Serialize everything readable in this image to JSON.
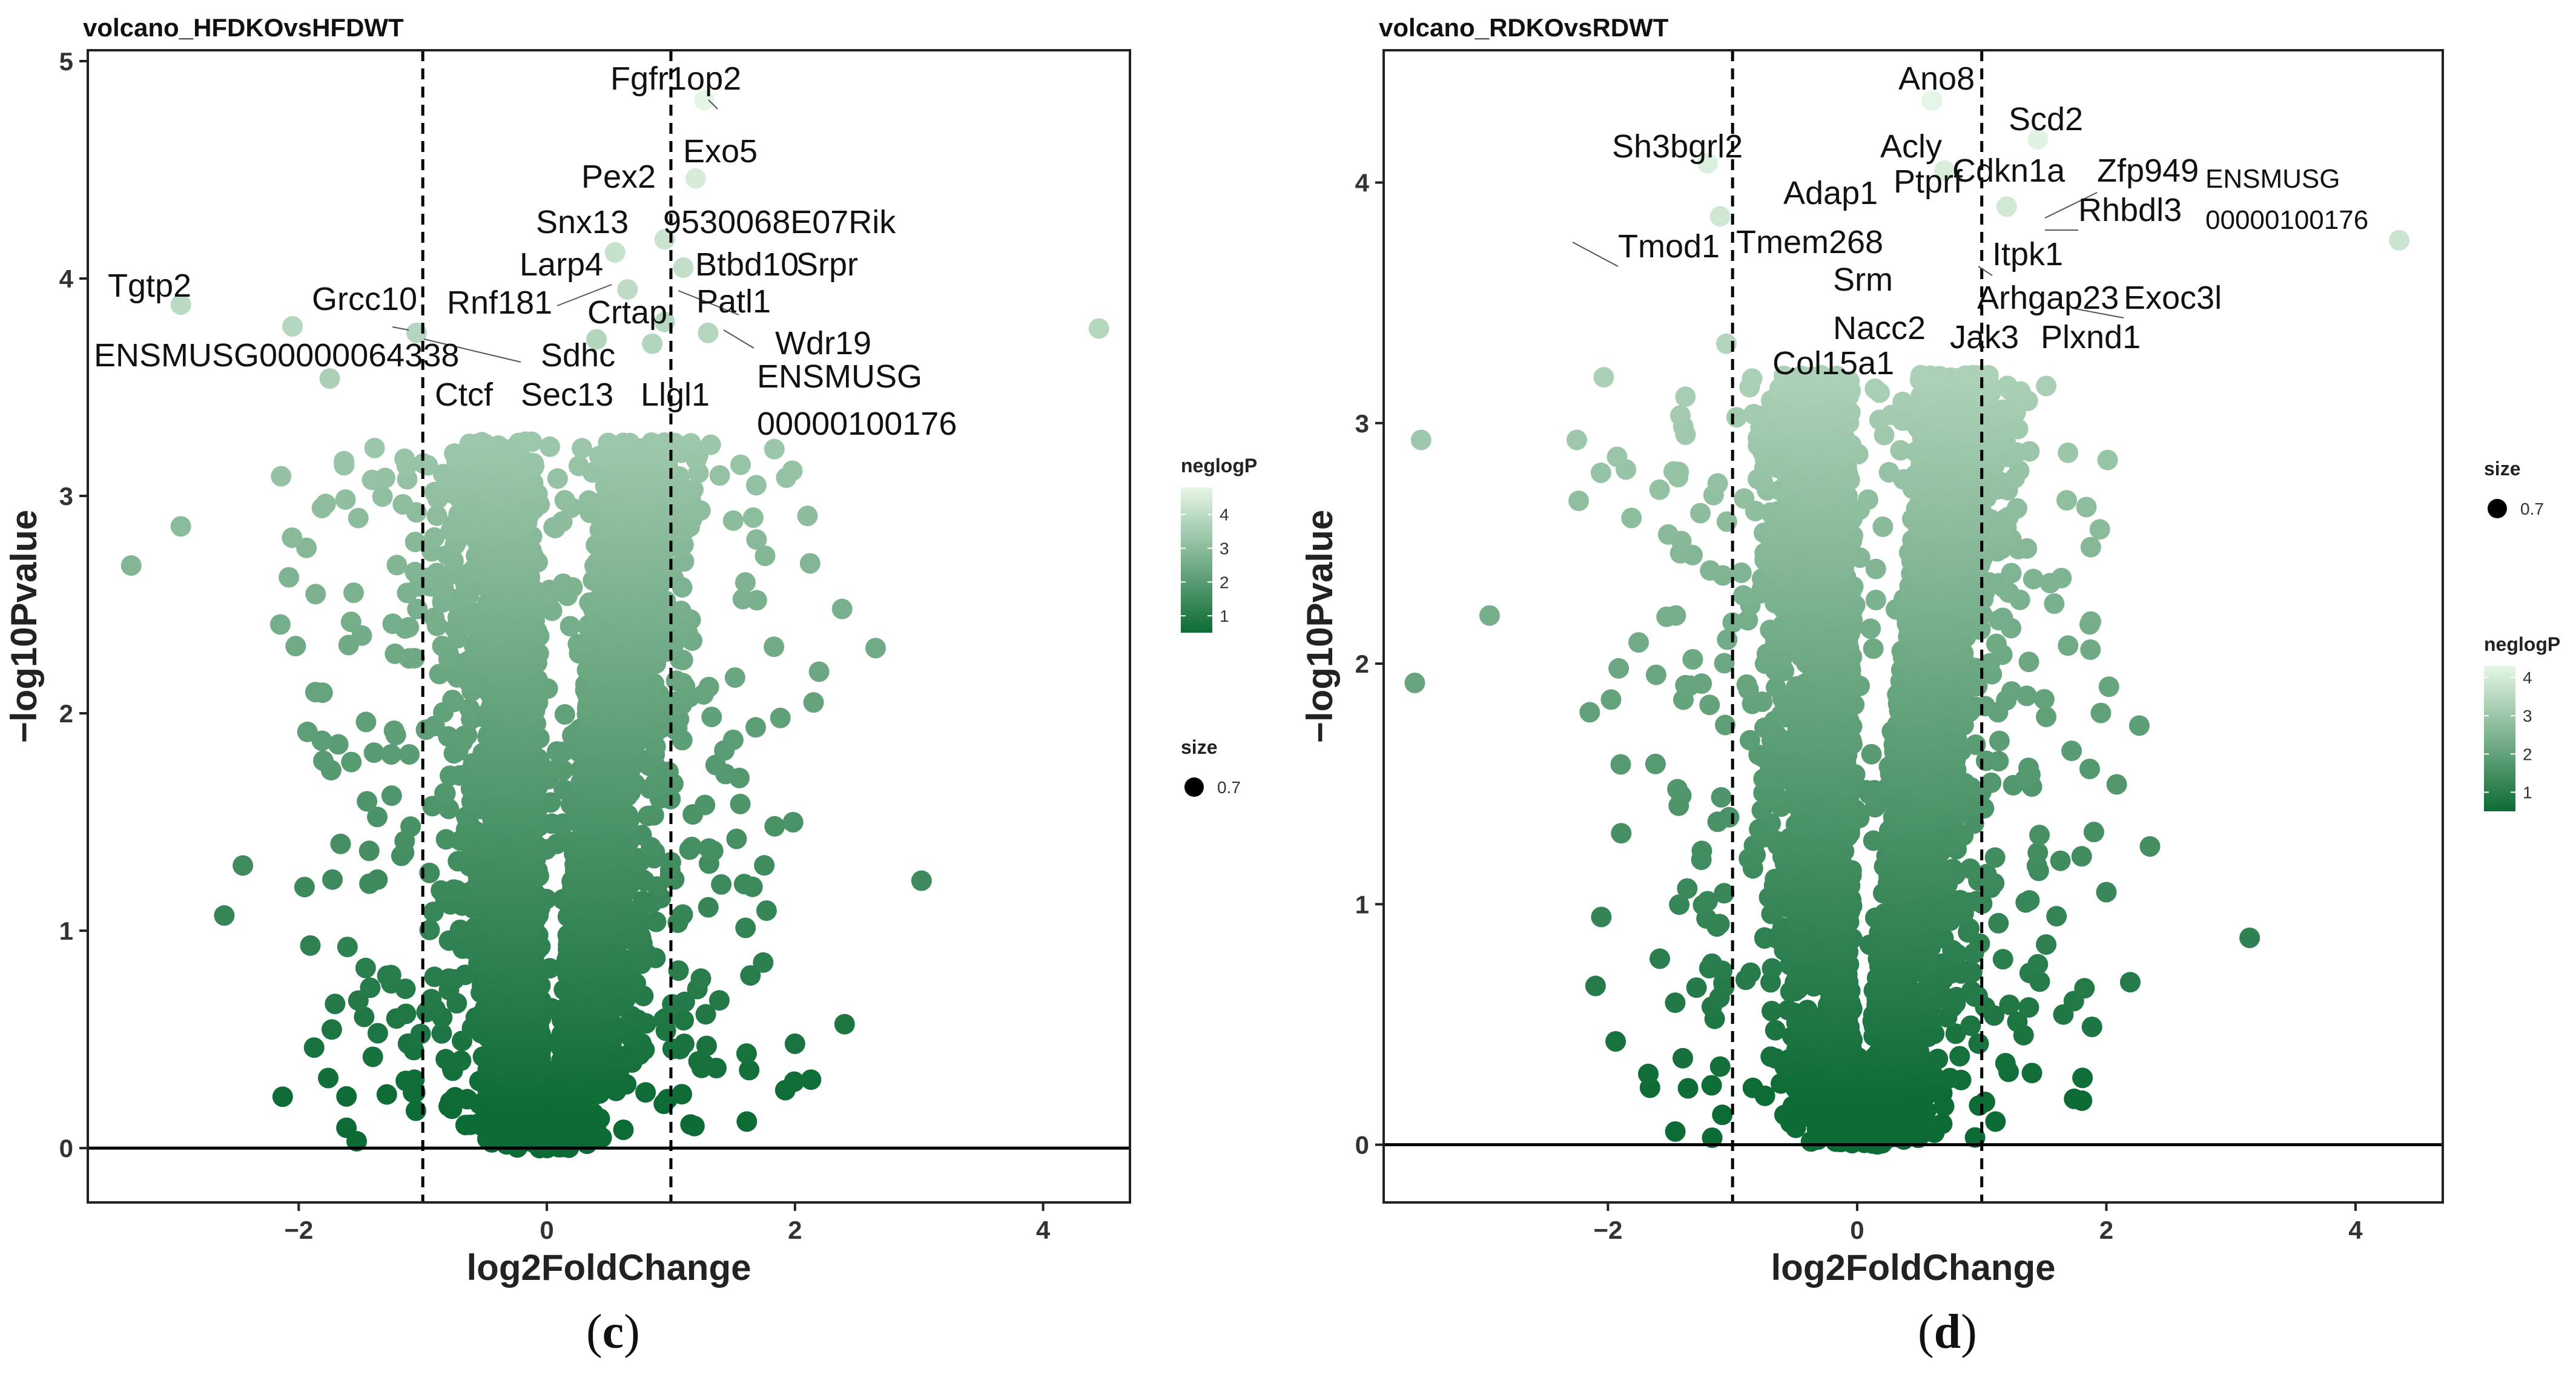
{
  "figure": {
    "caption_c": "c",
    "caption_d": "d"
  },
  "chart_data": [
    {
      "type": "scatter",
      "panel": "c",
      "title": "volcano_HFDKOvsHFDWT",
      "xlabel": "log2FoldChange",
      "ylabel": "−log10Pvalue",
      "xlim": [
        -3.7,
        4.7
      ],
      "ylim": [
        -0.25,
        5.05
      ],
      "xticks": [
        -2,
        0,
        2,
        4
      ],
      "xtick_labels": [
        "−2",
        "0",
        "2",
        "4"
      ],
      "yticks": [
        0,
        1,
        2,
        3,
        4,
        5
      ],
      "ytick_labels": [
        "0",
        "1",
        "2",
        "3",
        "4",
        "5"
      ],
      "vlines": [
        -1,
        1
      ],
      "hline": 0,
      "grid": false,
      "colorbar": {
        "title": "neglogP",
        "ticks": [
          1,
          2,
          3,
          4
        ],
        "tick_labels": [
          "1",
          "2",
          "3",
          "4"
        ],
        "min": 0.5,
        "max": 4.8,
        "low_color": "#0d6b35",
        "high_color": "#e6f6e6"
      },
      "size_legend": {
        "title": "size",
        "value_label": "0.7"
      },
      "highlighted_points": [
        [
          4.45,
          3.77
        ],
        [
          -2.95,
          3.88
        ],
        [
          3.02,
          1.23
        ],
        [
          -3.35,
          2.68
        ],
        [
          -2.95,
          2.86
        ],
        [
          -1.75,
          3.54
        ],
        [
          -2.05,
          3.78
        ],
        [
          1.27,
          4.82
        ],
        [
          1.2,
          4.46
        ],
        [
          0.55,
          4.12
        ],
        [
          0.95,
          4.18
        ],
        [
          1.1,
          4.05
        ],
        [
          0.95,
          3.8
        ],
        [
          1.3,
          3.75
        ],
        [
          -1.05,
          3.75
        ],
        [
          0.65,
          3.95
        ],
        [
          0.4,
          3.72
        ],
        [
          0.85,
          3.7
        ],
        [
          2.38,
          2.48
        ],
        [
          2.65,
          2.3
        ],
        [
          2.15,
          2.05
        ],
        [
          -2.45,
          1.3
        ],
        [
          -2.6,
          1.07
        ],
        [
          2.4,
          0.57
        ],
        [
          2.0,
          0.48
        ]
      ],
      "labels": [
        {
          "text": "Fgfr1op2",
          "x": 1.27,
          "y": 4.82
        },
        {
          "text": "Exo5",
          "x": 1.2,
          "y": 4.46
        },
        {
          "text": "Pex2",
          "x": 0.55,
          "y": 4.12
        },
        {
          "text": "Snx13",
          "x": 0.6,
          "y": 4.06
        },
        {
          "text": "9530068E07Rik",
          "x": 0.95,
          "y": 4.18
        },
        {
          "text": "Larp4",
          "x": 0.6,
          "y": 4.0
        },
        {
          "text": "Btbd10",
          "x": 1.0,
          "y": 4.05
        },
        {
          "text": "Srpr",
          "x": 1.1,
          "y": 4.05
        },
        {
          "text": "Tgtp2",
          "x": -2.95,
          "y": 3.88
        },
        {
          "text": "Grcc10",
          "x": -2.05,
          "y": 3.78
        },
        {
          "text": "Rnf181",
          "x": 0.55,
          "y": 3.97
        },
        {
          "text": "Crtap",
          "x": 0.7,
          "y": 3.93
        },
        {
          "text": "Patl1",
          "x": 1.0,
          "y": 3.85
        },
        {
          "text": "ENSMUSG00000064338",
          "x": -1.05,
          "y": 3.75
        },
        {
          "text": "Sdhc",
          "x": 0.45,
          "y": 3.72
        },
        {
          "text": "Wdr19",
          "x": 1.3,
          "y": 3.75
        },
        {
          "text": "Ctcf",
          "x": -0.6,
          "y": 3.55
        },
        {
          "text": "Sec13",
          "x": 0.3,
          "y": 3.55
        },
        {
          "text": "Llgl1",
          "x": 0.95,
          "y": 3.75
        },
        {
          "text": "ENSMUSG",
          "x": 4.45,
          "y": 3.77
        },
        {
          "text": "00000100176",
          "x": 4.45,
          "y": 3.77
        }
      ]
    },
    {
      "type": "scatter",
      "panel": "d",
      "title": "volcano_RDKOvsRDWT",
      "xlabel": "log2FoldChange",
      "ylabel": "−log10Pvalue",
      "xlim": [
        -3.8,
        4.7
      ],
      "ylim": [
        -0.24,
        4.55
      ],
      "xticks": [
        -2,
        0,
        2,
        4
      ],
      "xtick_labels": [
        "−2",
        "0",
        "2",
        "4"
      ],
      "yticks": [
        0,
        1,
        2,
        3,
        4
      ],
      "ytick_labels": [
        "0",
        "1",
        "2",
        "3",
        "4"
      ],
      "vlines": [
        -1,
        1
      ],
      "hline": 0,
      "grid": false,
      "colorbar": {
        "title": "neglogP",
        "ticks": [
          1,
          2,
          3,
          4
        ],
        "tick_labels": [
          "1",
          "2",
          "3",
          "4"
        ],
        "min": 0.5,
        "max": 4.3,
        "low_color": "#0d6b35",
        "high_color": "#e6f6e6"
      },
      "size_legend": {
        "title": "size",
        "value_label": "0.7"
      },
      "highlighted_points": [
        [
          4.35,
          3.76
        ],
        [
          3.15,
          0.86
        ],
        [
          -3.5,
          2.93
        ],
        [
          -3.55,
          1.92
        ],
        [
          -2.95,
          2.2
        ],
        [
          -2.25,
          2.93
        ],
        [
          -1.2,
          4.08
        ],
        [
          -1.1,
          3.86
        ],
        [
          -1.05,
          3.33
        ],
        [
          0.6,
          4.34
        ],
        [
          1.45,
          4.18
        ],
        [
          0.7,
          4.05
        ],
        [
          1.2,
          3.9
        ],
        [
          2.35,
          1.24
        ],
        [
          1.9,
          1.3
        ],
        [
          2.0,
          1.05
        ],
        [
          1.6,
          0.95
        ],
        [
          1.45,
          0.75
        ]
      ],
      "labels": [
        {
          "text": "Ano8",
          "x": 0.6,
          "y": 4.34
        },
        {
          "text": "Scd2",
          "x": 1.45,
          "y": 4.18
        },
        {
          "text": "Sh3bgrl2",
          "x": -1.2,
          "y": 4.08
        },
        {
          "text": "Acly",
          "x": 0.6,
          "y": 4.05
        },
        {
          "text": "Cdkn1a",
          "x": 0.75,
          "y": 3.98
        },
        {
          "text": "Zfp949",
          "x": 1.0,
          "y": 3.95
        },
        {
          "text": "ENSMUSG",
          "x": 4.35,
          "y": 3.76
        },
        {
          "text": "00000100176",
          "x": 4.35,
          "y": 3.76
        },
        {
          "text": "Adap1",
          "x": 0.55,
          "y": 3.92
        },
        {
          "text": "Ptprf",
          "x": 0.7,
          "y": 3.92
        },
        {
          "text": "Rhbdl3",
          "x": 1.0,
          "y": 3.85
        },
        {
          "text": "Tmod1",
          "x": -1.1,
          "y": 3.86
        },
        {
          "text": "Tmem268",
          "x": 0.5,
          "y": 3.8
        },
        {
          "text": "Itpk1",
          "x": 0.95,
          "y": 3.72
        },
        {
          "text": "Srm",
          "x": 0.45,
          "y": 3.6
        },
        {
          "text": "Arhgap23",
          "x": 0.75,
          "y": 3.58
        },
        {
          "text": "Exoc3l",
          "x": 1.0,
          "y": 3.58
        },
        {
          "text": "Nacc2",
          "x": 0.5,
          "y": 3.45
        },
        {
          "text": "Jak3",
          "x": 0.7,
          "y": 3.42
        },
        {
          "text": "Plxnd1",
          "x": 0.9,
          "y": 3.42
        },
        {
          "text": "Col15a1",
          "x": 0.35,
          "y": 3.3
        }
      ]
    }
  ]
}
